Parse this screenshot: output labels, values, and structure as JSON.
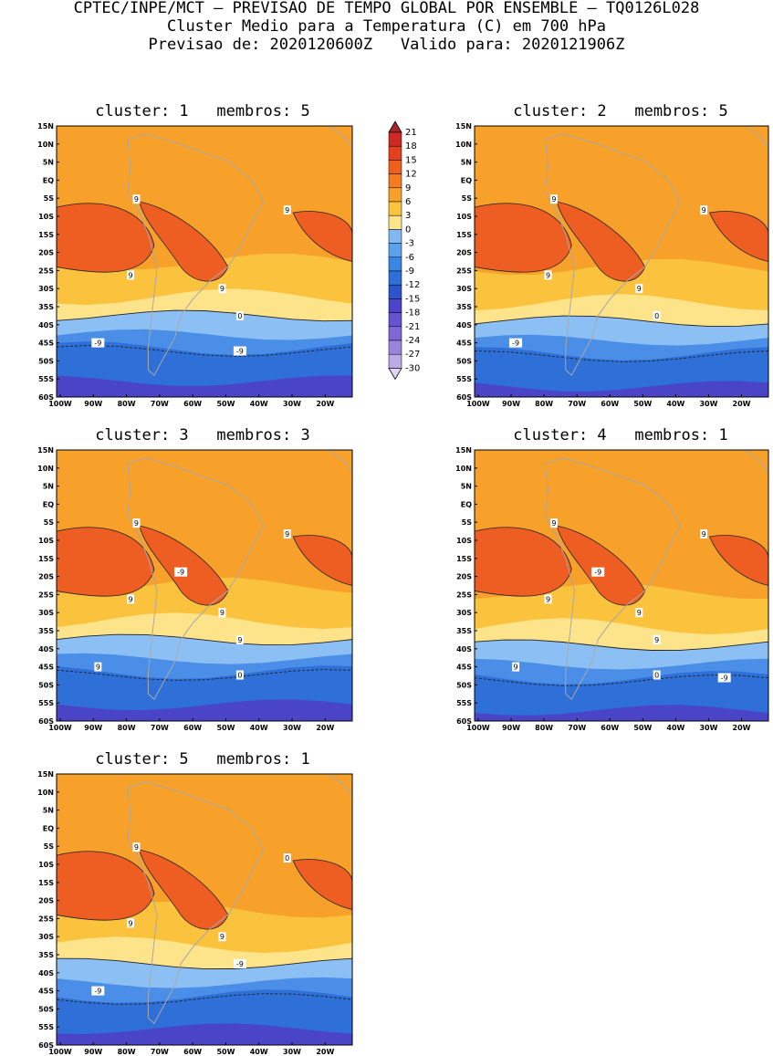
{
  "header": {
    "line1": "CPTEC/INPE/MCT – PREVISAO DE TEMPO GLOBAL POR ENSEMBLE – TQ0126L028",
    "line2": "Cluster Medio para a Temperatura (C) em 700 hPa",
    "line3": "Previsao de: 2020120600Z   Valido para: 2020121906Z"
  },
  "axes": {
    "lat_ticks": [
      "15N",
      "10N",
      "5N",
      "EQ",
      "5S",
      "10S",
      "15S",
      "20S",
      "25S",
      "30S",
      "35S",
      "40S",
      "45S",
      "50S",
      "55S",
      "60S"
    ],
    "lon_ticks": [
      "100W",
      "90W",
      "80W",
      "70W",
      "60W",
      "50W",
      "40W",
      "30W",
      "20W"
    ]
  },
  "colorbar": {
    "levels": [
      "21",
      "18",
      "15",
      "12",
      "9",
      "6",
      "3",
      "0",
      "-3",
      "-6",
      "-9",
      "-12",
      "-15",
      "-18",
      "-21",
      "-24",
      "-27",
      "-30"
    ],
    "colors": [
      "#a4262c",
      "#cc2a22",
      "#e3401d",
      "#ef5f1d",
      "#f47b1e",
      "#f7a02a",
      "#fbc23e",
      "#fde38a",
      "#7fb8f3",
      "#5aa2ee",
      "#3a86e4",
      "#2f6fd8",
      "#2e55c8",
      "#4a45c6",
      "#6653cf",
      "#8066d6",
      "#9b84de",
      "#bcaae7",
      "#ddd6f2"
    ]
  },
  "colors": {
    "warm_dark": "#ee5e22",
    "warm": "#f7a02a",
    "warm_light": "#fbc23e",
    "cool_light": "#8cc0f4",
    "cool": "#4a8ee8",
    "cool_dark": "#2f6fd8",
    "deep": "#4a45c6",
    "contour": "#222222",
    "coast": "#a8a8a8"
  },
  "panels": [
    {
      "title": "cluster: 1   membros: 5",
      "contour_labels": [
        "9",
        "9",
        "9",
        "9",
        "0",
        "-9",
        "-9"
      ]
    },
    {
      "title": "cluster: 2   membros: 5",
      "contour_labels": [
        "9",
        "9",
        "9",
        "9",
        "0",
        "-9"
      ]
    },
    {
      "title": "cluster: 3   membros: 3",
      "contour_labels": [
        "9",
        "9",
        "9",
        "9",
        "9",
        "9",
        "0",
        "-9"
      ]
    },
    {
      "title": "cluster: 4   membros: 1",
      "contour_labels": [
        "9",
        "9",
        "9",
        "9",
        "9",
        "9",
        "0",
        "-9",
        "-9"
      ]
    },
    {
      "title": "cluster: 5   membros: 1",
      "contour_labels": [
        "9",
        "9",
        "9",
        "0",
        "-9",
        "-9"
      ]
    }
  ]
}
